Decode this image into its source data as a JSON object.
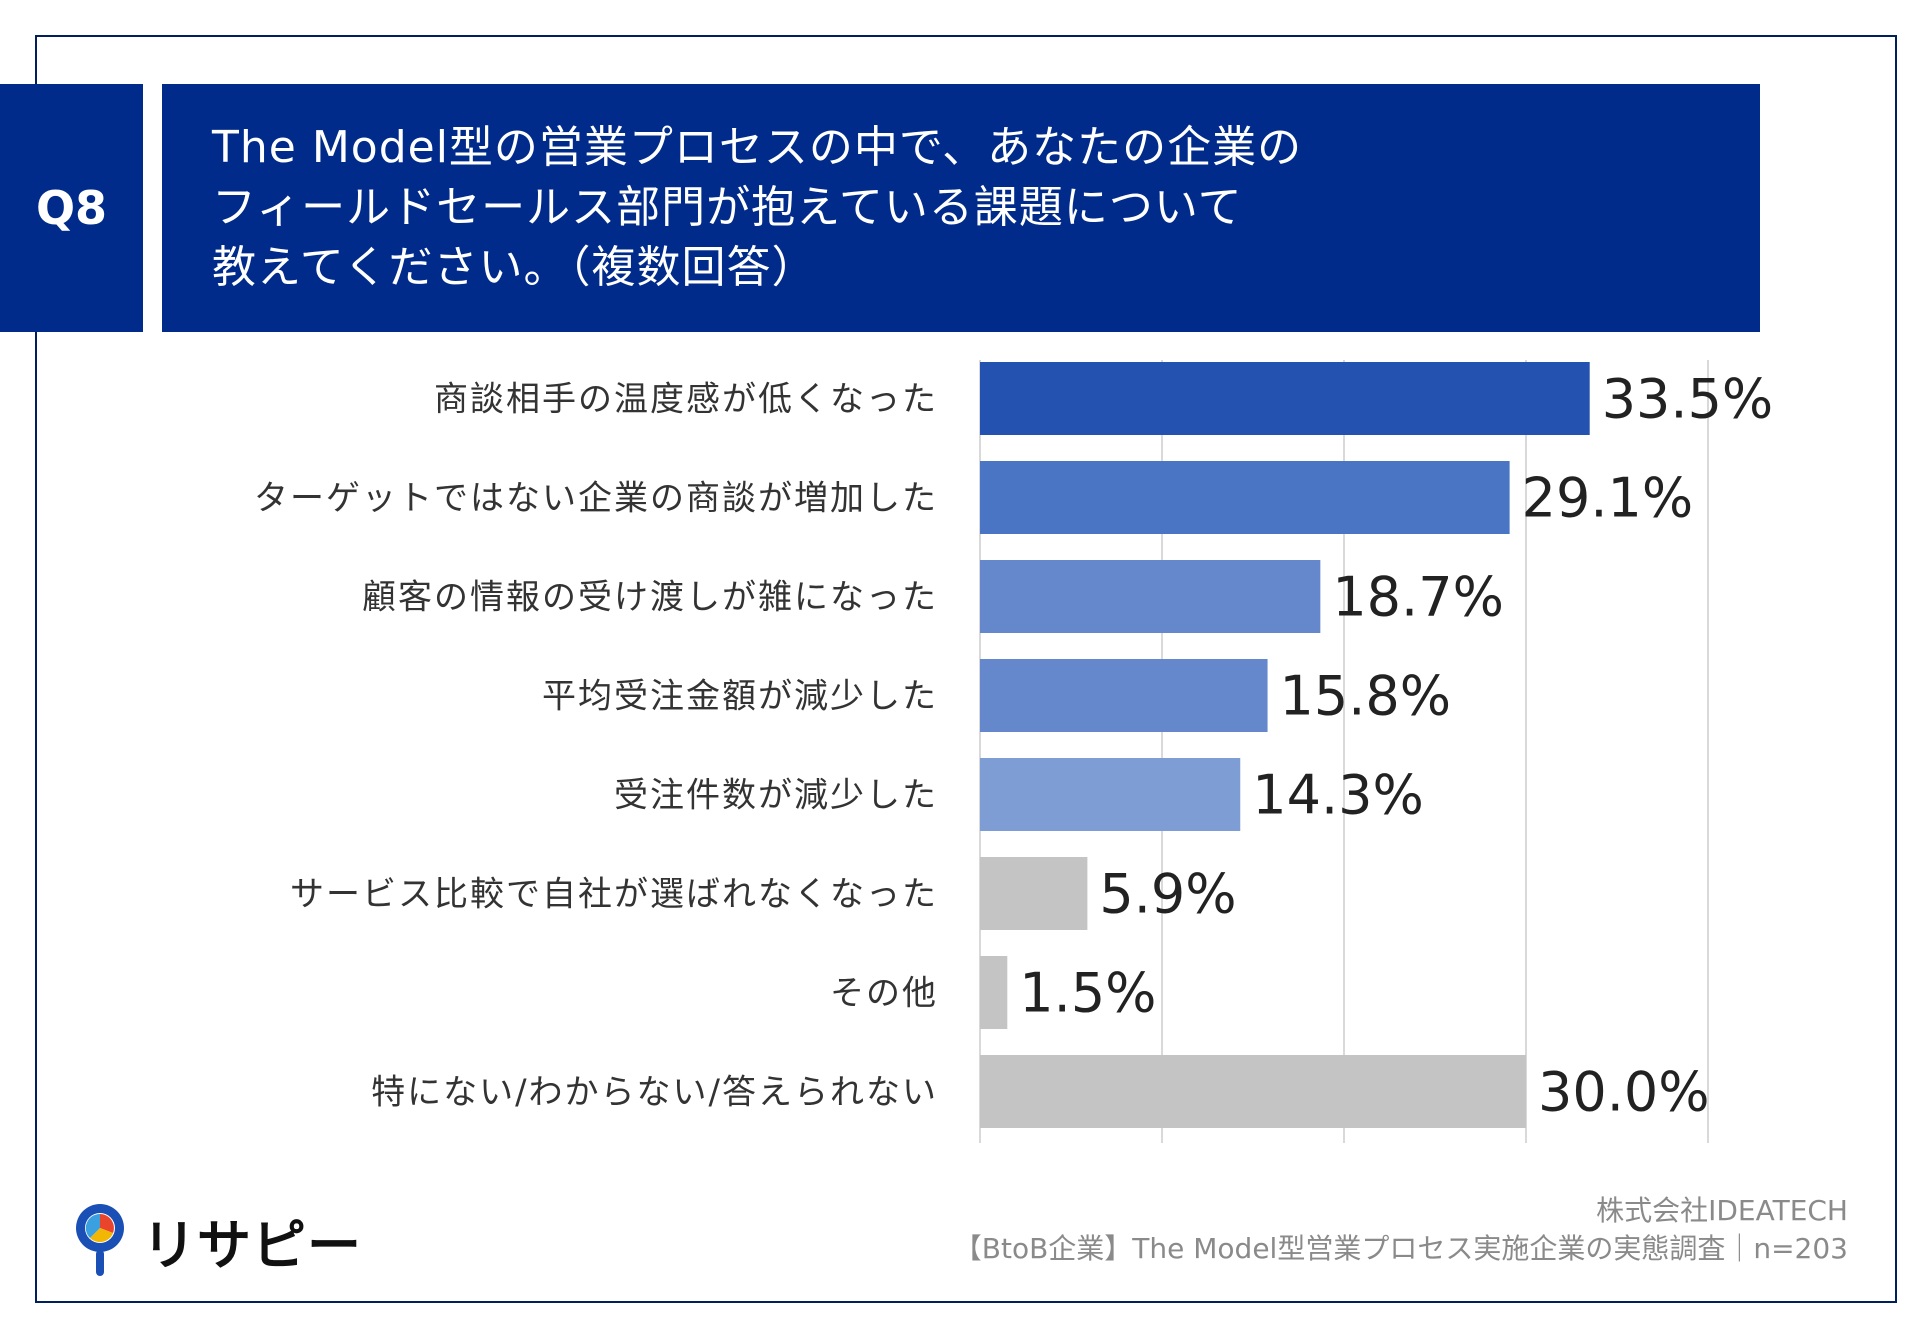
{
  "question": {
    "number": "Q8",
    "line1": "The Model型の営業プロセスの中で、あなたの企業の",
    "line2": "フィールドセールス部門が抱えている課題について",
    "line3": "教えてください。（複数回答）"
  },
  "chart_data": {
    "type": "bar",
    "orientation": "horizontal",
    "categories": [
      "商談相手の温度感が低くなった",
      "ターゲットではない企業の商談が増加した",
      "顧客の情報の受け渡しが雑になった",
      "平均受注金額が減少した",
      "受注件数が減少した",
      "サービス比較で自社が選ばれなくなった",
      "その他",
      "特にない/わからない/答えられない"
    ],
    "values": [
      33.5,
      29.1,
      18.7,
      15.8,
      14.3,
      5.9,
      1.5,
      30.0
    ],
    "value_labels": [
      "33.5%",
      "29.1%",
      "18.7%",
      "15.8%",
      "14.3%",
      "5.9%",
      "1.5%",
      "30.0%"
    ],
    "colors": [
      "#2452b0",
      "#4a74c4",
      "#6488cb",
      "#6488cb",
      "#7f9dd5",
      "#c4c4c4",
      "#c4c4c4",
      "#c4c4c4"
    ],
    "xlim": [
      0,
      40
    ],
    "grid": true
  },
  "logo": {
    "text": "リサピー"
  },
  "footer": {
    "company": "株式会社IDEATECH",
    "survey": "【BtoB企業】The Model型営業プロセス実施企業の実態調査｜n=203"
  }
}
